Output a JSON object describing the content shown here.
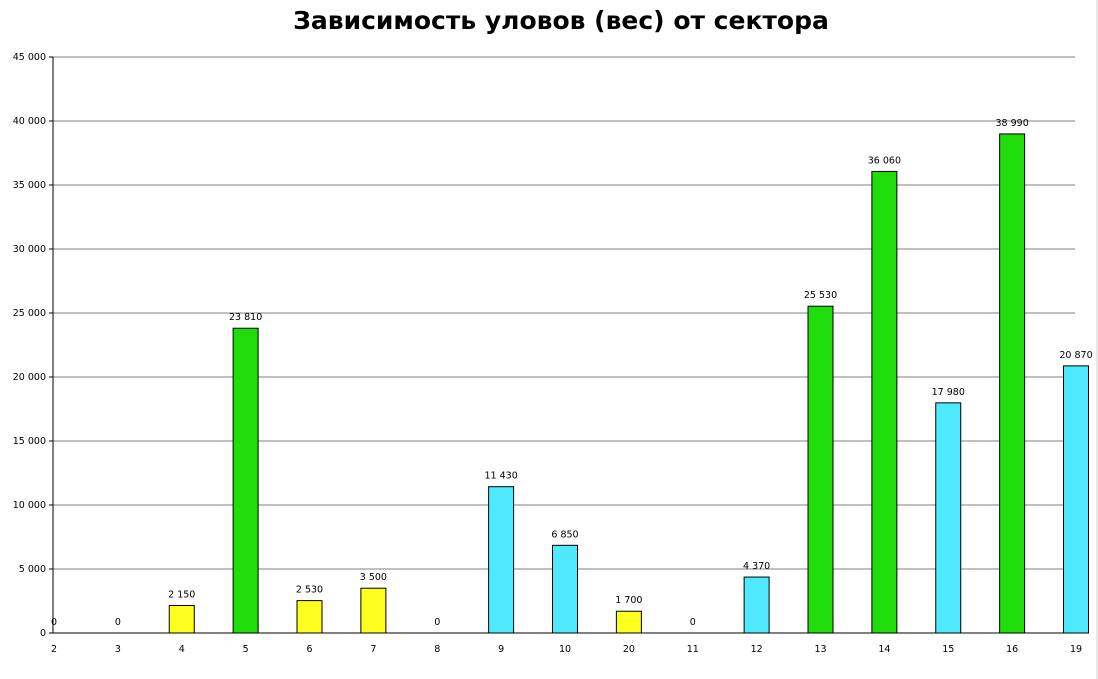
{
  "chart_data": {
    "type": "bar",
    "title": "Зависимость уловов (вес) от сектора",
    "xlabel": "",
    "ylabel": "",
    "ylim": [
      0,
      45000
    ],
    "yticks": [
      {
        "value": 0,
        "label": "0"
      },
      {
        "value": 5000,
        "label": "5 000"
      },
      {
        "value": 10000,
        "label": "10 000"
      },
      {
        "value": 15000,
        "label": "15 000"
      },
      {
        "value": 20000,
        "label": "20 000"
      },
      {
        "value": 25000,
        "label": "25 000"
      },
      {
        "value": 30000,
        "label": "30 000"
      },
      {
        "value": 35000,
        "label": "35 000"
      },
      {
        "value": 40000,
        "label": "40 000"
      },
      {
        "value": 45000,
        "label": "45 000"
      }
    ],
    "grid": true,
    "legend": "none",
    "colors": {
      "yellow": "#ffff1f",
      "green": "#1fdc0a",
      "cyan": "#4fe9ff",
      "grid": "#808080",
      "outline": "#000000"
    },
    "bars": [
      {
        "category": "2",
        "value": 0,
        "label": "0",
        "color": "yellow"
      },
      {
        "category": "3",
        "value": 0,
        "label": "0",
        "color": "yellow"
      },
      {
        "category": "4",
        "value": 2150,
        "label": "2 150",
        "color": "yellow"
      },
      {
        "category": "5",
        "value": 23810,
        "label": "23 810",
        "color": "green"
      },
      {
        "category": "6",
        "value": 2530,
        "label": "2 530",
        "color": "yellow"
      },
      {
        "category": "7",
        "value": 3500,
        "label": "3 500",
        "color": "yellow"
      },
      {
        "category": "8",
        "value": 0,
        "label": "0",
        "color": "cyan"
      },
      {
        "category": "9",
        "value": 11430,
        "label": "11 430",
        "color": "cyan"
      },
      {
        "category": "10",
        "value": 6850,
        "label": "6 850",
        "color": "cyan"
      },
      {
        "category": "20",
        "value": 1700,
        "label": "1 700",
        "color": "yellow"
      },
      {
        "category": "11",
        "value": 0,
        "label": "0",
        "color": "cyan"
      },
      {
        "category": "12",
        "value": 4370,
        "label": "4 370",
        "color": "cyan"
      },
      {
        "category": "13",
        "value": 25530,
        "label": "25 530",
        "color": "green"
      },
      {
        "category": "14",
        "value": 36060,
        "label": "36 060",
        "color": "green"
      },
      {
        "category": "15",
        "value": 17980,
        "label": "17 980",
        "color": "cyan"
      },
      {
        "category": "16",
        "value": 38990,
        "label": "38 990",
        "color": "green"
      },
      {
        "category": "19",
        "value": 20870,
        "label": "20 870",
        "color": "cyan"
      }
    ]
  }
}
